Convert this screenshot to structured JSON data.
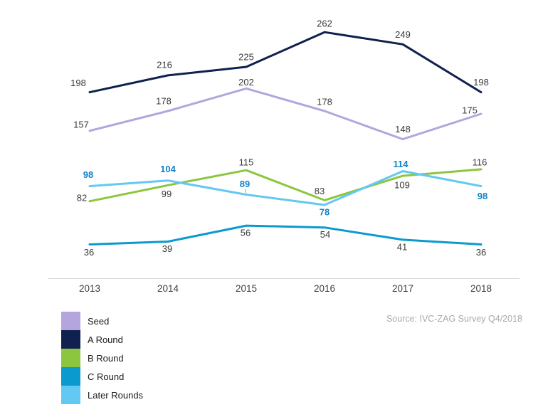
{
  "chart_data": {
    "type": "line",
    "title": "",
    "xlabel": "",
    "ylabel": "",
    "categories": [
      "2013",
      "2014",
      "2015",
      "2016",
      "2017",
      "2018"
    ],
    "series": [
      {
        "name": "Seed",
        "color": "#b5a5de",
        "label_color": "#3a3a3a",
        "label_bold": false,
        "values": [
          157,
          178,
          202,
          178,
          148,
          175
        ],
        "label_offsets": [
          [
            -12,
            -9
          ],
          [
            -6,
            -14
          ],
          [
            0,
            -9
          ],
          [
            0,
            -13
          ],
          [
            0,
            -14
          ],
          [
            -16,
            -5
          ]
        ]
      },
      {
        "name": "A Round",
        "color": "#10204f",
        "label_color": "#3a3a3a",
        "label_bold": false,
        "values": [
          198,
          216,
          225,
          262,
          249,
          198
        ],
        "label_offsets": [
          [
            -16,
            -13
          ],
          [
            -5,
            -15
          ],
          [
            0,
            -14
          ],
          [
            0,
            -12
          ],
          [
            0,
            -14
          ],
          [
            0,
            -14
          ]
        ]
      },
      {
        "name": "B Round",
        "color": "#8cc63f",
        "label_color": "#3a3a3a",
        "label_bold": false,
        "values": [
          82,
          99,
          115,
          83,
          109,
          116
        ],
        "label_offsets": [
          [
            -11,
            -5
          ],
          [
            -2,
            12
          ],
          [
            0,
            -11
          ],
          [
            -7,
            -13
          ],
          [
            -1,
            13
          ],
          [
            -2,
            -10
          ]
        ]
      },
      {
        "name": "C Round",
        "color": "#0a9ace",
        "label_color": "#3a3a3a",
        "label_bold": false,
        "values": [
          36,
          39,
          56,
          54,
          41,
          36
        ],
        "label_offsets": [
          [
            -1,
            11
          ],
          [
            -1,
            10
          ],
          [
            -1,
            10
          ],
          [
            1,
            10
          ],
          [
            -1,
            10
          ],
          [
            0,
            11
          ]
        ]
      },
      {
        "name": "Later Rounds",
        "color": "#63c8f3",
        "label_color": "#1283c4",
        "label_bold": true,
        "values": [
          98,
          104,
          89,
          78,
          114,
          98
        ],
        "label_offsets": [
          [
            -2,
            -16
          ],
          [
            0,
            -16
          ],
          [
            -2,
            -15
          ],
          [
            0,
            10
          ],
          [
            -3,
            -10
          ],
          [
            2,
            14
          ]
        ]
      }
    ],
    "label_leader": {
      "series_index": 4,
      "point_index": 2
    },
    "ylim": [
      0,
      296
    ],
    "grid": false,
    "axis_line_color": "#d9d9d9",
    "legend_position": "bottom-left",
    "source": "Source: IVC-ZAG Survey Q4/2018"
  }
}
